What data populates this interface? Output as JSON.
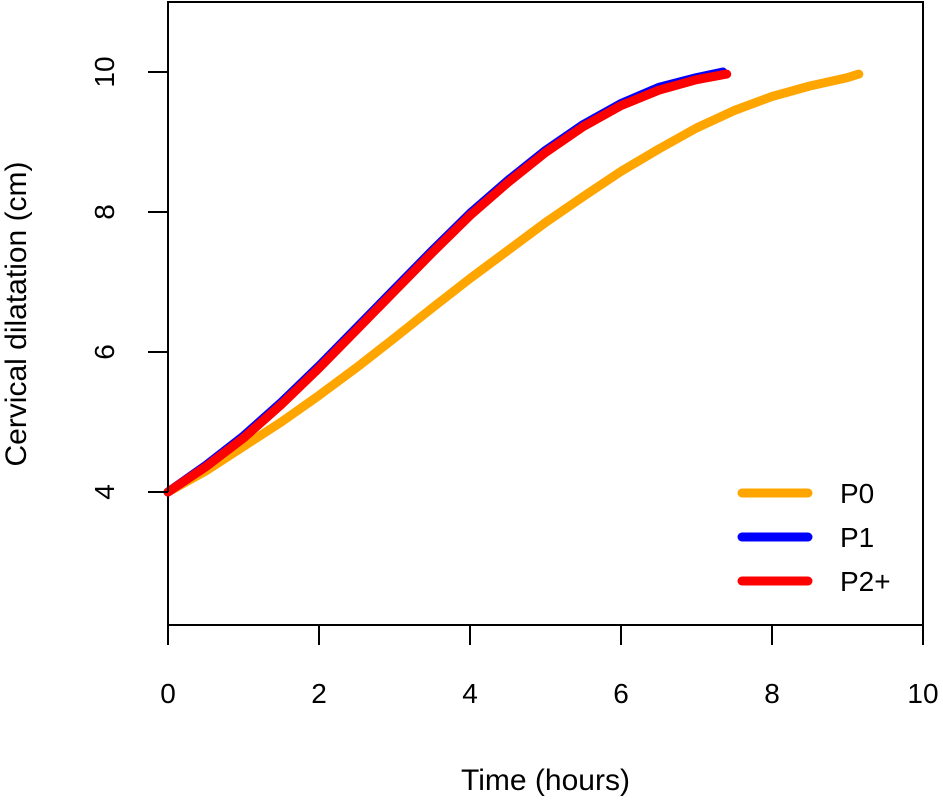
{
  "chart_data": {
    "type": "line",
    "title": "",
    "xlabel": "Time (hours)",
    "ylabel": "Cervical dilatation (cm)",
    "xlim": [
      0,
      10
    ],
    "ylim": [
      2.1,
      11
    ],
    "xticks": [
      0,
      2,
      4,
      6,
      8,
      10
    ],
    "yticks": [
      4,
      6,
      8,
      10
    ],
    "grid": false,
    "legend_position": "bottom-right",
    "series": [
      {
        "name": "P0",
        "color": "#FFA500",
        "points": [
          [
            0,
            4.0
          ],
          [
            0.5,
            4.3
          ],
          [
            1.0,
            4.65
          ],
          [
            1.5,
            5.0
          ],
          [
            2.0,
            5.38
          ],
          [
            2.5,
            5.78
          ],
          [
            3.0,
            6.2
          ],
          [
            3.5,
            6.63
          ],
          [
            4.0,
            7.05
          ],
          [
            4.5,
            7.45
          ],
          [
            5.0,
            7.85
          ],
          [
            5.5,
            8.22
          ],
          [
            6.0,
            8.58
          ],
          [
            6.5,
            8.9
          ],
          [
            7.0,
            9.2
          ],
          [
            7.5,
            9.45
          ],
          [
            8.0,
            9.65
          ],
          [
            8.5,
            9.8
          ],
          [
            9.0,
            9.92
          ],
          [
            9.15,
            9.97
          ]
        ]
      },
      {
        "name": "P1",
        "color": "#0000FF",
        "points": [
          [
            0,
            4.0
          ],
          [
            0.5,
            4.38
          ],
          [
            1.0,
            4.8
          ],
          [
            1.5,
            5.28
          ],
          [
            2.0,
            5.8
          ],
          [
            2.5,
            6.35
          ],
          [
            3.0,
            6.9
          ],
          [
            3.5,
            7.45
          ],
          [
            4.0,
            7.98
          ],
          [
            4.5,
            8.45
          ],
          [
            5.0,
            8.88
          ],
          [
            5.5,
            9.25
          ],
          [
            6.0,
            9.55
          ],
          [
            6.5,
            9.78
          ],
          [
            7.0,
            9.92
          ],
          [
            7.35,
            10.0
          ]
        ]
      },
      {
        "name": "P2+",
        "color": "#FF0000",
        "points": [
          [
            0,
            4.0
          ],
          [
            0.5,
            4.36
          ],
          [
            1.0,
            4.77
          ],
          [
            1.5,
            5.25
          ],
          [
            2.0,
            5.77
          ],
          [
            2.5,
            6.32
          ],
          [
            3.0,
            6.87
          ],
          [
            3.5,
            7.42
          ],
          [
            4.0,
            7.95
          ],
          [
            4.5,
            8.42
          ],
          [
            5.0,
            8.85
          ],
          [
            5.5,
            9.22
          ],
          [
            6.0,
            9.52
          ],
          [
            6.5,
            9.74
          ],
          [
            7.0,
            9.89
          ],
          [
            7.4,
            9.97
          ]
        ]
      }
    ]
  }
}
